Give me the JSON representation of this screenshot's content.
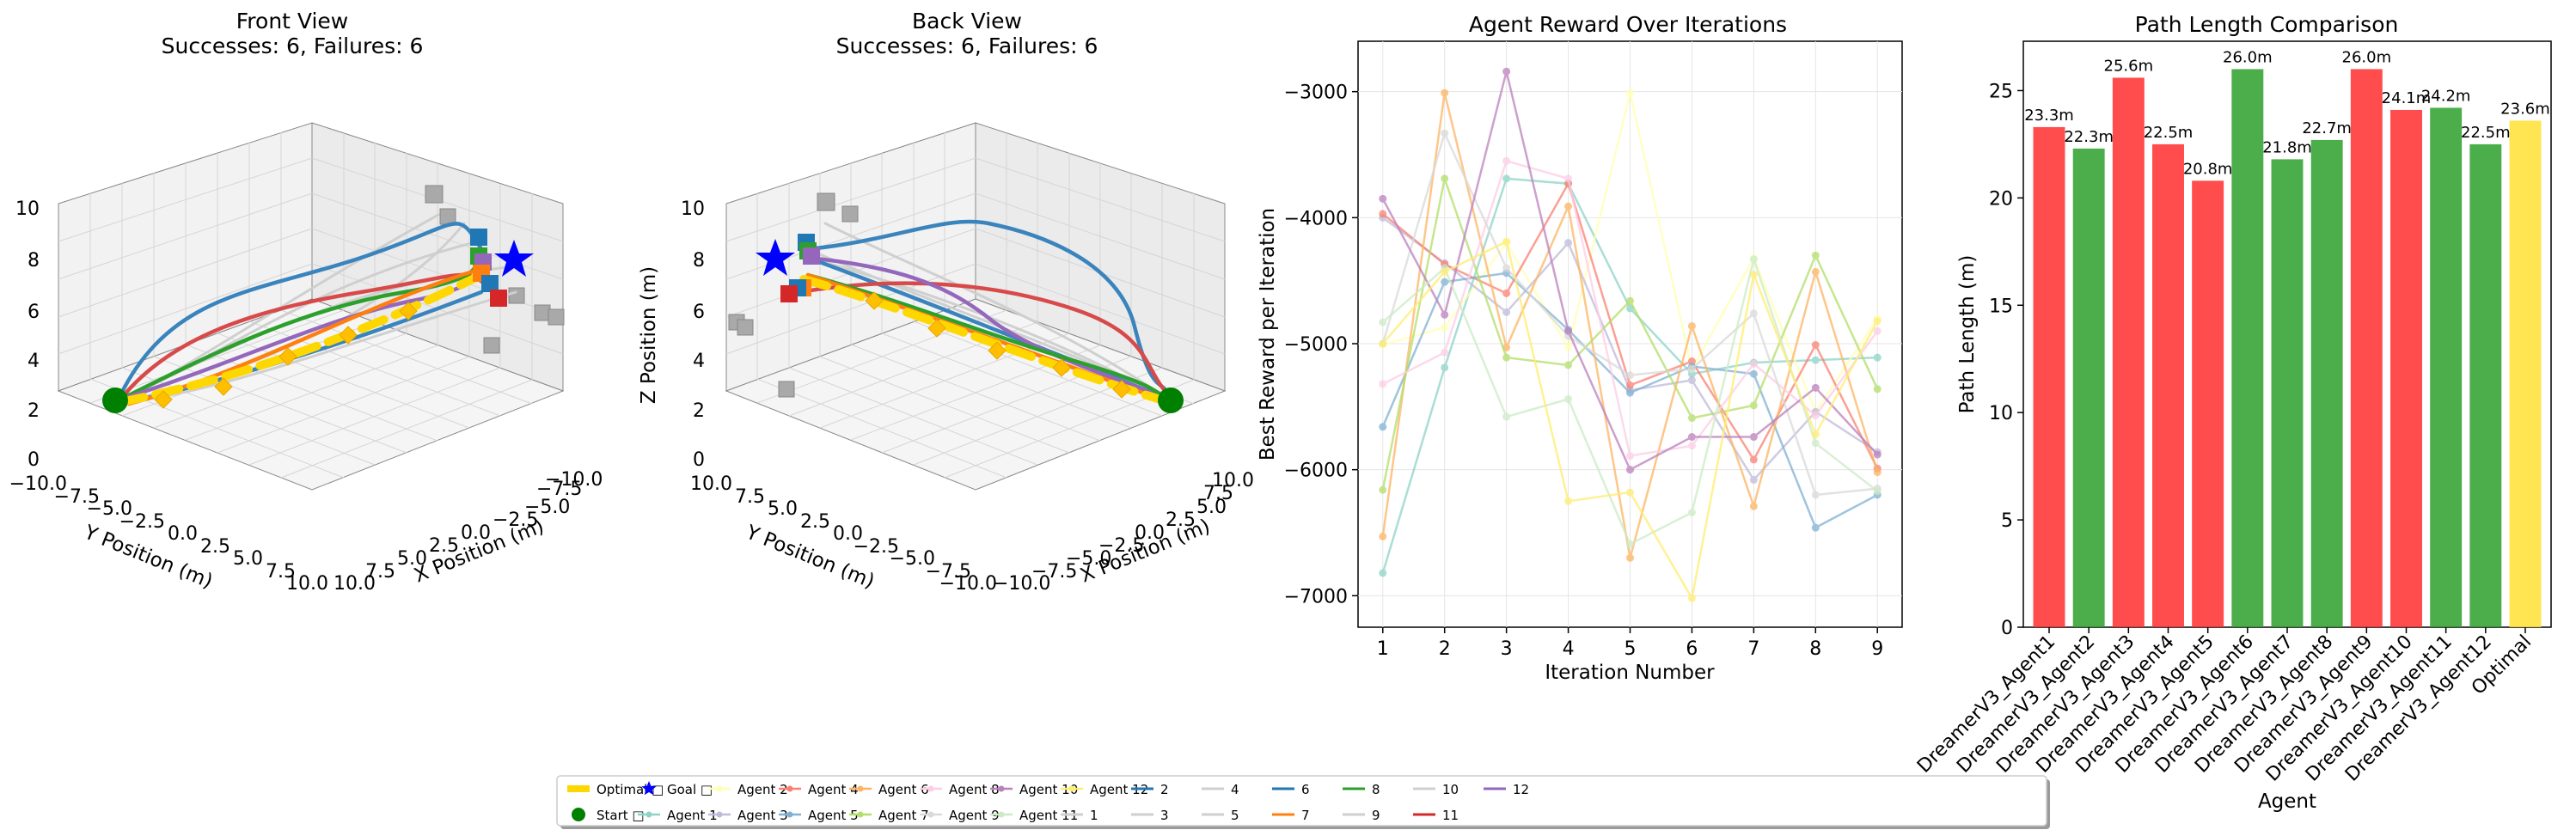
{
  "colors": {
    "optimal": "#ffd700",
    "start": "#008000",
    "goal": "#0000ff",
    "success": "#2ca02c",
    "failure": "#ff2d2d",
    "optimal_bar": "#ffe033",
    "obstacle": "#a9a9a9",
    "agents": [
      "#8dd3c7",
      "#ffffb3",
      "#bebada",
      "#fb8072",
      "#80b1d3",
      "#fdb462",
      "#b3de69",
      "#fccde5",
      "#d9d9d9",
      "#bc80bd",
      "#ccebc5",
      "#ffed6f"
    ],
    "paths": [
      "#cfcfcf",
      "#1f77b4",
      "#cfcfcf",
      "#cfcfcf",
      "#cfcfcf",
      "#1f77b4",
      "#ff7f0e",
      "#2ca02c",
      "#cfcfcf",
      "#cfcfcf",
      "#d62728",
      "#9467bd"
    ]
  },
  "chart_data": [
    {
      "type": "line3d",
      "title": "Front View",
      "subtitle": "Successes: 6, Failures: 6",
      "xlabel": "X Position (m)",
      "ylabel": "Y Position (m)",
      "zlabel": "",
      "xticks": [
        "−10.0",
        "−7.5",
        "−5.0",
        "−2.5",
        "0.0",
        "2.5",
        "5.0",
        "7.5",
        "10.0"
      ],
      "yticks": [
        "−10.0",
        "−7.5",
        "−5.0",
        "−2.5",
        "0.0",
        "2.5",
        "5.0",
        "7.5",
        "10.0"
      ],
      "zticks": [
        "0",
        "2",
        "4",
        "6",
        "8",
        "10"
      ]
    },
    {
      "type": "line3d",
      "title": "Back View",
      "subtitle": "Successes: 6, Failures: 6",
      "xlabel": "X Position (m)",
      "ylabel": "Y Position (m)",
      "zlabel": "Z Position (m)",
      "xticks": [
        "10.0",
        "7.5",
        "5.0",
        "2.5",
        "0.0",
        "−2.5",
        "−5.0",
        "−7.5",
        "−10.0"
      ],
      "yticks": [
        "10.0",
        "7.5",
        "5.0",
        "2.5",
        "0.0",
        "−2.5",
        "−5.0",
        "−7.5",
        "−10.0"
      ],
      "zticks": [
        "0",
        "2",
        "4",
        "6",
        "8",
        "10"
      ]
    },
    {
      "type": "line",
      "title": "Agent Reward Over Iterations",
      "xlabel": "Iteration Number",
      "ylabel": "Best Reward per Iteration",
      "x": [
        1,
        2,
        3,
        4,
        5,
        6,
        7,
        8,
        9
      ],
      "xlim": [
        0.6,
        9.4
      ],
      "ylim": [
        -7250,
        -2600
      ],
      "yticks": [
        -7000,
        -6000,
        -5000,
        -4000,
        -3000
      ],
      "grid": true,
      "series": [
        {
          "name": "Agent 1",
          "values": [
            -6820,
            -5190,
            -3690,
            -3730,
            -4720,
            -5240,
            -5150,
            -5130,
            -5110
          ]
        },
        {
          "name": "Agent 2",
          "values": [
            -5010,
            -4870,
            -4200,
            -5030,
            -3010,
            -5200,
            -4320,
            -5540,
            -4800
          ]
        },
        {
          "name": "Agent 3",
          "values": [
            -4000,
            -4360,
            -4750,
            -4200,
            -5370,
            -5290,
            -6080,
            -5540,
            -5860
          ]
        },
        {
          "name": "Agent 4",
          "values": [
            -3970,
            -4370,
            -4600,
            -3730,
            -5330,
            -5140,
            -5920,
            -5010,
            -5990
          ]
        },
        {
          "name": "Agent 5",
          "values": [
            -5660,
            -4510,
            -4440,
            -4890,
            -5390,
            -5180,
            -5240,
            -6460,
            -6200
          ]
        },
        {
          "name": "Agent 6",
          "values": [
            -6530,
            -3010,
            -5030,
            -3910,
            -6700,
            -4860,
            -6290,
            -4430,
            -6020
          ]
        },
        {
          "name": "Agent 7",
          "values": [
            -6160,
            -3690,
            -5110,
            -5170,
            -4660,
            -5590,
            -5490,
            -4300,
            -5360
          ]
        },
        {
          "name": "Agent 8",
          "values": [
            -5320,
            -5070,
            -3550,
            -3690,
            -5890,
            -5810,
            -5160,
            -5570,
            -4900
          ]
        },
        {
          "name": "Agent 9",
          "values": [
            -5000,
            -3330,
            -4400,
            -4940,
            -5250,
            -5200,
            -4760,
            -6200,
            -6150
          ]
        },
        {
          "name": "Agent 10",
          "values": [
            -3850,
            -4770,
            -2840,
            -4900,
            -6000,
            -5740,
            -5740,
            -5350,
            -5880
          ]
        },
        {
          "name": "Agent 11",
          "values": [
            -4830,
            -4400,
            -5580,
            -5440,
            -6590,
            -6340,
            -4330,
            -5790,
            -6170
          ]
        },
        {
          "name": "Agent 12",
          "values": [
            -5000,
            -4430,
            -4190,
            -6250,
            -6180,
            -7020,
            -4450,
            -5720,
            -4820
          ]
        }
      ]
    },
    {
      "type": "bar",
      "title": "Path Length Comparison",
      "xlabel": "Agent",
      "ylabel": "Path Length (m)",
      "ylim": [
        0,
        27.3
      ],
      "yticks": [
        0,
        5,
        10,
        15,
        20,
        25
      ],
      "categories": [
        "DreamerV3_Agent1",
        "DreamerV3_Agent2",
        "DreamerV3_Agent3",
        "DreamerV3_Agent4",
        "DreamerV3_Agent5",
        "DreamerV3_Agent6",
        "DreamerV3_Agent7",
        "DreamerV3_Agent8",
        "DreamerV3_Agent9",
        "DreamerV3_Agent10",
        "DreamerV3_Agent11",
        "DreamerV3_Agent12",
        "Optimal"
      ],
      "values": [
        23.3,
        22.3,
        25.6,
        22.5,
        20.8,
        26.0,
        21.8,
        22.7,
        26.0,
        24.1,
        24.2,
        22.5,
        23.6
      ],
      "labels": [
        "23.3m",
        "22.3m",
        "25.6m",
        "22.5m",
        "20.8m",
        "26.0m",
        "21.8m",
        "22.7m",
        "26.0m",
        "24.1m",
        "24.2m",
        "22.5m",
        "23.6m"
      ],
      "status": [
        "failure",
        "success",
        "failure",
        "failure",
        "failure",
        "success",
        "success",
        "success",
        "failure",
        "failure",
        "success",
        "success",
        "optimal"
      ]
    }
  ],
  "legend": {
    "placement": "bottom-center",
    "entries": [
      {
        "label": "Optimal □",
        "kind": "thick",
        "color": "#ffd700"
      },
      {
        "label": "Start □",
        "kind": "dot",
        "color": "#008000"
      },
      {
        "label": "Goal □",
        "kind": "star",
        "color": "#0000ff"
      },
      {
        "label": "Agent 1",
        "kind": "marker",
        "color": "#8dd3c7"
      },
      {
        "label": "Agent 2",
        "kind": "marker",
        "color": "#ffffb3"
      },
      {
        "label": "Agent 3",
        "kind": "marker",
        "color": "#bebada"
      },
      {
        "label": "Agent 4",
        "kind": "marker",
        "color": "#fb8072"
      },
      {
        "label": "Agent 5",
        "kind": "marker",
        "color": "#80b1d3"
      },
      {
        "label": "Agent 6",
        "kind": "marker",
        "color": "#fdb462"
      },
      {
        "label": "Agent 7",
        "kind": "marker",
        "color": "#b3de69"
      },
      {
        "label": "Agent 8",
        "kind": "marker",
        "color": "#fccde5"
      },
      {
        "label": "Agent 9",
        "kind": "marker",
        "color": "#d9d9d9"
      },
      {
        "label": "Agent 10",
        "kind": "marker",
        "color": "#bc80bd"
      },
      {
        "label": "Agent 11",
        "kind": "marker",
        "color": "#ccebc5"
      },
      {
        "label": "Agent 12",
        "kind": "marker",
        "color": "#ffed6f"
      },
      {
        "label": "1",
        "kind": "line",
        "color": "#cfcfcf"
      },
      {
        "label": "2",
        "kind": "line",
        "color": "#1f77b4"
      },
      {
        "label": "3",
        "kind": "line",
        "color": "#cfcfcf"
      },
      {
        "label": "4",
        "kind": "line",
        "color": "#cfcfcf"
      },
      {
        "label": "5",
        "kind": "line",
        "color": "#cfcfcf"
      },
      {
        "label": "6",
        "kind": "line",
        "color": "#1f77b4"
      },
      {
        "label": "7",
        "kind": "line",
        "color": "#ff7f0e"
      },
      {
        "label": "8",
        "kind": "line",
        "color": "#2ca02c"
      },
      {
        "label": "9",
        "kind": "line",
        "color": "#cfcfcf"
      },
      {
        "label": "10",
        "kind": "line",
        "color": "#cfcfcf"
      },
      {
        "label": "11",
        "kind": "line",
        "color": "#d62728"
      },
      {
        "label": "12",
        "kind": "line",
        "color": "#9467bd"
      }
    ]
  }
}
